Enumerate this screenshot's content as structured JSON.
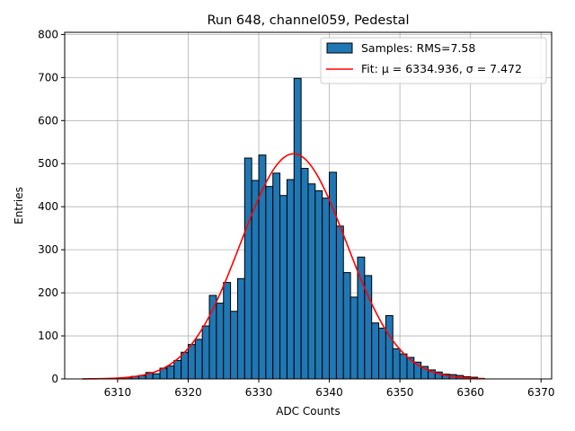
{
  "chart_data": {
    "type": "bar",
    "title": "Run 648, channel059, Pedestal",
    "xlabel": "ADC Counts",
    "ylabel": "Entries",
    "xlim": [
      6302.5,
      6371.5
    ],
    "ylim": [
      0,
      805
    ],
    "xticks": [
      6310,
      6320,
      6330,
      6340,
      6350,
      6360,
      6370
    ],
    "yticks": [
      0,
      100,
      200,
      300,
      400,
      500,
      600,
      700,
      800
    ],
    "grid": true,
    "legend_position": "top-right",
    "bin_width": 1,
    "series": [
      {
        "name": "Samples: RMS=7.58",
        "kind": "histogram",
        "color": "#1f77b4",
        "edge_color": "#000000",
        "bin_left_edges": [
          6309,
          6310,
          6311,
          6312,
          6313,
          6314,
          6315,
          6316,
          6317,
          6318,
          6319,
          6320,
          6321,
          6322,
          6323,
          6324,
          6325,
          6326,
          6327,
          6328,
          6329,
          6330,
          6331,
          6332,
          6333,
          6334,
          6335,
          6336,
          6337,
          6338,
          6339,
          6340,
          6341,
          6342,
          6343,
          6344,
          6345,
          6346,
          6347,
          6348,
          6349,
          6350,
          6351,
          6352,
          6353,
          6354,
          6355,
          6356,
          6357,
          6358,
          6359,
          6360,
          6361
        ],
        "values": [
          1,
          2,
          3,
          6,
          8,
          15,
          12,
          25,
          30,
          43,
          62,
          80,
          92,
          123,
          194,
          176,
          224,
          157,
          233,
          513,
          461,
          520,
          447,
          478,
          426,
          463,
          698,
          489,
          453,
          437,
          420,
          480,
          355,
          247,
          190,
          283,
          240,
          130,
          118,
          147,
          70,
          58,
          50,
          39,
          29,
          21,
          16,
          11,
          10,
          8,
          5,
          4,
          1
        ]
      },
      {
        "name": "Fit: μ = 6334.936, σ = 7.472",
        "kind": "gaussian",
        "color": "#ff0000",
        "amplitude": 523,
        "mu": 6334.936,
        "sigma": 7.472,
        "x_range": [
          6305,
          6362
        ]
      }
    ]
  }
}
